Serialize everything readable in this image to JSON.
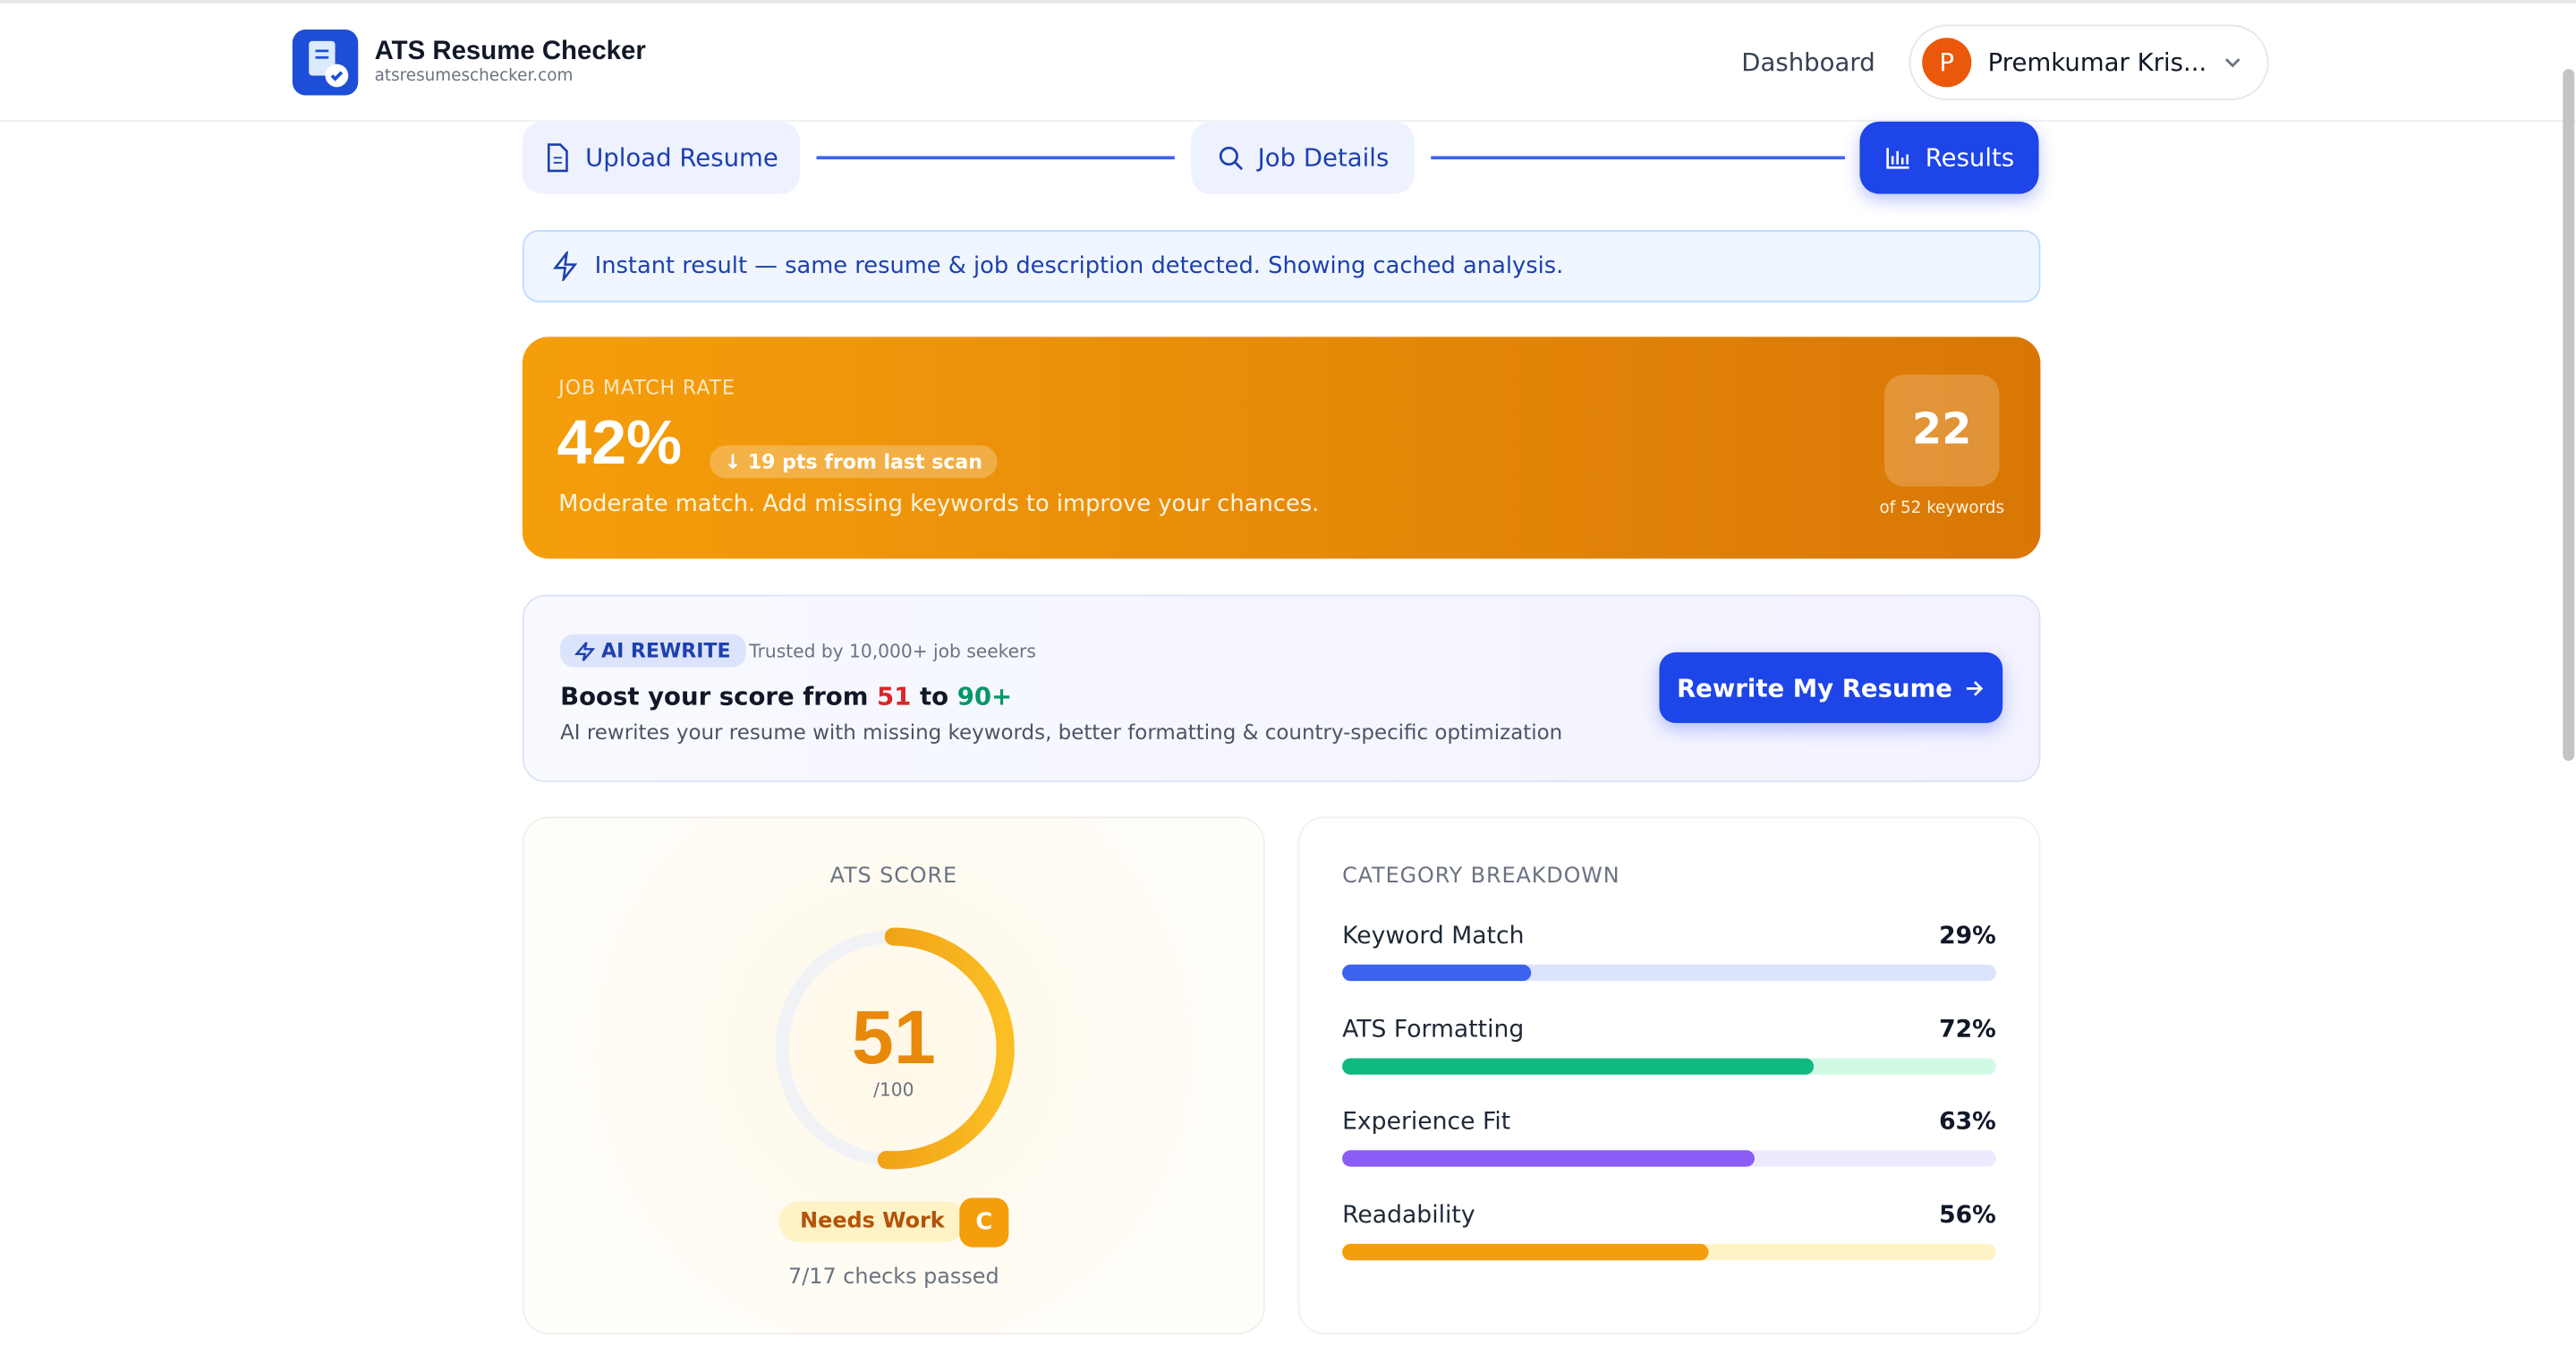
{
  "header": {
    "brand": "ATS Resume Checker",
    "domain": "atsresumeschecker.com",
    "nav": "Dashboard",
    "user_initial": "P",
    "user_name": "Premkumar Kris..."
  },
  "steps": [
    "Upload Resume",
    "Job Details",
    "Results"
  ],
  "notice": "Instant result — same resume & job description detected. Showing cached analysis.",
  "match": {
    "label": "JOB MATCH RATE",
    "rate": "42%",
    "change": "↓ 19 pts from last scan",
    "message": "Moderate match. Add missing keywords to improve your chances.",
    "keywords_matched": "22",
    "keywords_total": "of 52 keywords"
  },
  "rewrite": {
    "badge": "AI REWRITE",
    "trust": "Trusted by 10,000+ job seekers",
    "headline_start": "Boost your score from",
    "score_from": "51",
    "headline_mid": "to",
    "score_to": "90+",
    "description": "AI rewrites your resume with missing keywords, better formatting & country-specific optimization",
    "button": "Rewrite My Resume"
  },
  "ats_score": {
    "title": "ATS SCORE",
    "score": 51,
    "max": {
      "value": 100,
      "label": "/100"
    },
    "status": "Needs Work",
    "grade": "C",
    "checks": "7/17 checks passed"
  },
  "breakdown": {
    "title": "CATEGORY BREAKDOWN",
    "items": [
      {
        "name": "Keyword Match",
        "value": 29,
        "label": "29%",
        "color": "#3b63f0",
        "track": "#dbe4fb"
      },
      {
        "name": "ATS Formatting",
        "value": 72,
        "label": "72%",
        "color": "#10b981",
        "track": "#d1fae5"
      },
      {
        "name": "Experience Fit",
        "value": 63,
        "label": "63%",
        "color": "#8b5cf6",
        "track": "#ede9fe"
      },
      {
        "name": "Readability",
        "value": 56,
        "label": "56%",
        "color": "#f59e0b",
        "track": "#fef3c7"
      }
    ]
  }
}
